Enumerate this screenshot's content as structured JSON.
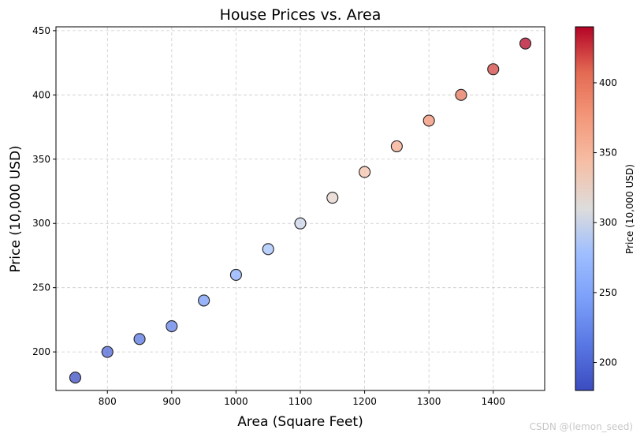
{
  "chart_data": {
    "type": "scatter",
    "title": "House Prices vs. Area",
    "xlabel": "Area (Square Feet)",
    "ylabel": "Price (10,000 USD)",
    "x": [
      750,
      800,
      850,
      900,
      950,
      1000,
      1050,
      1100,
      1150,
      1200,
      1250,
      1300,
      1350,
      1400,
      1450
    ],
    "y": [
      180,
      200,
      210,
      220,
      240,
      260,
      280,
      300,
      320,
      340,
      360,
      380,
      400,
      420,
      440
    ],
    "xlim": [
      720,
      1480
    ],
    "ylim": [
      170,
      453
    ],
    "xticks": [
      "800",
      "900",
      "1000",
      "1100",
      "1200",
      "1300",
      "1400"
    ],
    "yticks": [
      "200",
      "250",
      "300",
      "350",
      "400",
      "450"
    ],
    "grid": true,
    "colormap": "coolwarm",
    "colorbar": {
      "label": "Price (10,000 USD)",
      "range": [
        180,
        440
      ],
      "ticks": [
        "200",
        "250",
        "300",
        "350",
        "400"
      ]
    }
  },
  "watermark": "CSDN @(lemon_seed)"
}
